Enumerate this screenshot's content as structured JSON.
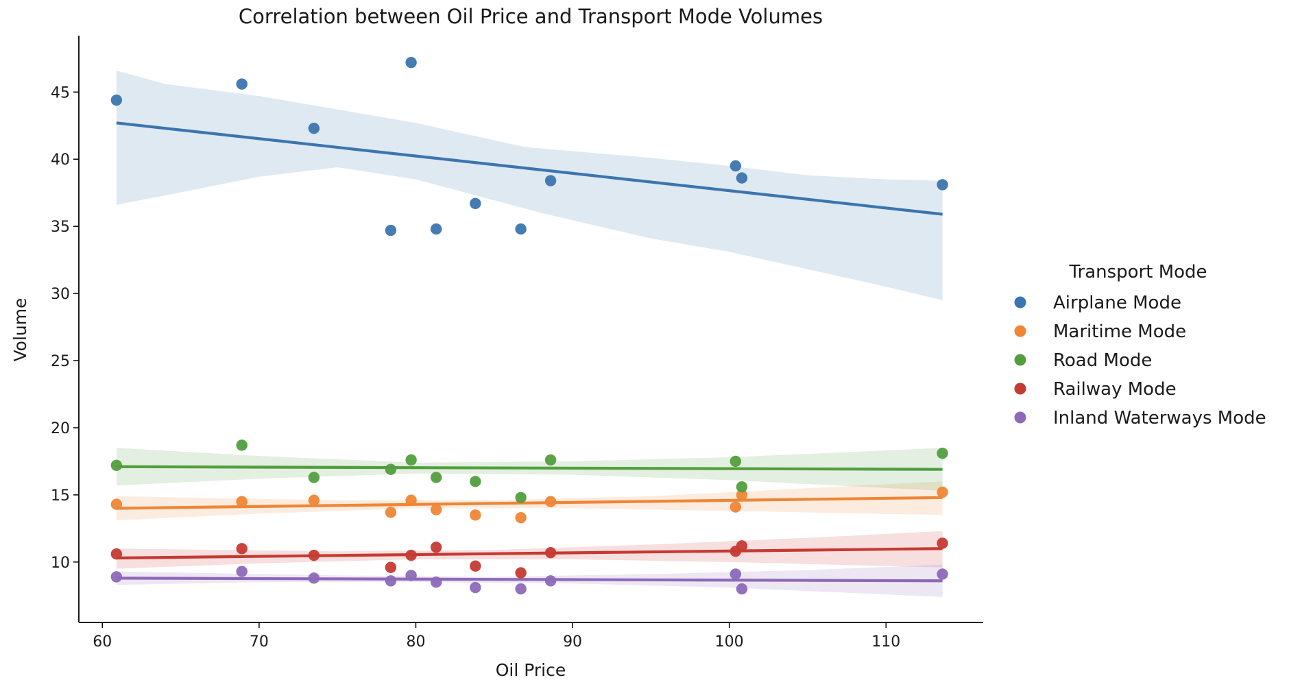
{
  "chart_data": {
    "type": "scatter",
    "title": "Correlation between Oil Price and Transport Mode Volumes",
    "xlabel": "Oil Price",
    "ylabel": "Volume",
    "xlim": [
      58.5,
      116.2
    ],
    "ylim": [
      5.5,
      49.2
    ],
    "xticks": [
      60,
      70,
      80,
      90,
      100,
      110
    ],
    "yticks": [
      10,
      15,
      20,
      25,
      30,
      35,
      40,
      45
    ],
    "grid": false,
    "legend": {
      "title": "Transport Mode",
      "position": "right"
    },
    "x": [
      60.9,
      68.9,
      73.5,
      78.4,
      79.7,
      81.3,
      83.8,
      86.7,
      88.6,
      100.4,
      100.8,
      113.6
    ],
    "series": [
      {
        "name": "Airplane Mode",
        "color": "#3b75af",
        "values": [
          44.4,
          45.6,
          42.3,
          34.7,
          47.2,
          34.8,
          36.7,
          34.8,
          38.4,
          39.5,
          38.6,
          38.1
        ],
        "fit": {
          "x": [
            60.9,
            113.6
          ],
          "y": [
            42.7,
            35.9
          ]
        },
        "band_upper": [
          [
            60.9,
            46.6
          ],
          [
            64,
            45.6
          ],
          [
            70,
            44.7
          ],
          [
            80,
            42.7
          ],
          [
            87,
            40.9
          ],
          [
            95,
            40.1
          ],
          [
            100,
            39.5
          ],
          [
            105,
            38.8
          ],
          [
            110,
            38.5
          ],
          [
            113.6,
            38.4
          ]
        ],
        "band_lower": [
          [
            60.9,
            36.6
          ],
          [
            64,
            37.3
          ],
          [
            70,
            38.7
          ],
          [
            75,
            39.4
          ],
          [
            80,
            38.5
          ],
          [
            88,
            36.0
          ],
          [
            95,
            34.1
          ],
          [
            100,
            33.1
          ],
          [
            105,
            31.8
          ],
          [
            110,
            30.5
          ],
          [
            113.6,
            29.5
          ]
        ]
      },
      {
        "name": "Maritime Mode",
        "color": "#ef8636",
        "values": [
          14.3,
          14.5,
          14.6,
          13.7,
          14.6,
          13.9,
          13.5,
          13.3,
          14.5,
          14.1,
          15.0,
          15.2
        ],
        "fit": {
          "x": [
            60.9,
            113.6
          ],
          "y": [
            14.0,
            14.8
          ]
        },
        "band_upper": [
          [
            60.9,
            14.9
          ],
          [
            75,
            14.6
          ],
          [
            85,
            14.6
          ],
          [
            95,
            14.9
          ],
          [
            105,
            15.5
          ],
          [
            113.6,
            16.0
          ]
        ],
        "band_lower": [
          [
            60.9,
            13.1
          ],
          [
            70,
            13.6
          ],
          [
            80,
            14.0
          ],
          [
            90,
            14.0
          ],
          [
            100,
            13.8
          ],
          [
            113.6,
            13.5
          ]
        ]
      },
      {
        "name": "Road Mode",
        "color": "#529e3e",
        "values": [
          17.2,
          18.7,
          16.3,
          16.9,
          17.6,
          16.3,
          16.0,
          14.8,
          17.6,
          17.5,
          15.6,
          18.1
        ],
        "fit": {
          "x": [
            60.9,
            113.6
          ],
          "y": [
            17.1,
            16.9
          ]
        },
        "band_upper": [
          [
            60.9,
            18.5
          ],
          [
            70,
            17.9
          ],
          [
            80,
            17.4
          ],
          [
            90,
            17.5
          ],
          [
            100,
            17.8
          ],
          [
            113.6,
            18.5
          ]
        ],
        "band_lower": [
          [
            60.9,
            15.7
          ],
          [
            70,
            16.2
          ],
          [
            80,
            16.6
          ],
          [
            90,
            16.5
          ],
          [
            100,
            16.1
          ],
          [
            113.6,
            15.3
          ]
        ]
      },
      {
        "name": "Railway Mode",
        "color": "#c53a32",
        "values": [
          10.6,
          11.0,
          10.5,
          9.6,
          10.5,
          11.1,
          9.7,
          9.2,
          10.7,
          10.8,
          11.2,
          11.4
        ],
        "fit": {
          "x": [
            60.9,
            113.6
          ],
          "y": [
            10.3,
            11.0
          ]
        },
        "band_upper": [
          [
            60.9,
            11.0
          ],
          [
            75,
            10.8
          ],
          [
            85,
            10.9
          ],
          [
            95,
            11.3
          ],
          [
            105,
            11.8
          ],
          [
            113.6,
            12.3
          ]
        ],
        "band_lower": [
          [
            60.9,
            9.5
          ],
          [
            70,
            9.9
          ],
          [
            80,
            10.2
          ],
          [
            90,
            10.2
          ],
          [
            100,
            10.0
          ],
          [
            113.6,
            9.6
          ]
        ]
      },
      {
        "name": "Inland Waterways Mode",
        "color": "#8d69b8",
        "values": [
          8.9,
          9.3,
          8.8,
          8.6,
          9.0,
          8.5,
          8.1,
          8.0,
          8.6,
          9.1,
          8.0,
          9.1
        ],
        "fit": {
          "x": [
            60.9,
            113.6
          ],
          "y": [
            8.8,
            8.6
          ]
        },
        "band_upper": [
          [
            60.9,
            9.3
          ],
          [
            75,
            9.0
          ],
          [
            85,
            8.9
          ],
          [
            95,
            9.1
          ],
          [
            105,
            9.4
          ],
          [
            113.6,
            9.8
          ]
        ],
        "band_lower": [
          [
            60.9,
            8.3
          ],
          [
            70,
            8.5
          ],
          [
            80,
            8.5
          ],
          [
            90,
            8.4
          ],
          [
            100,
            8.1
          ],
          [
            113.6,
            7.4
          ]
        ]
      }
    ]
  }
}
